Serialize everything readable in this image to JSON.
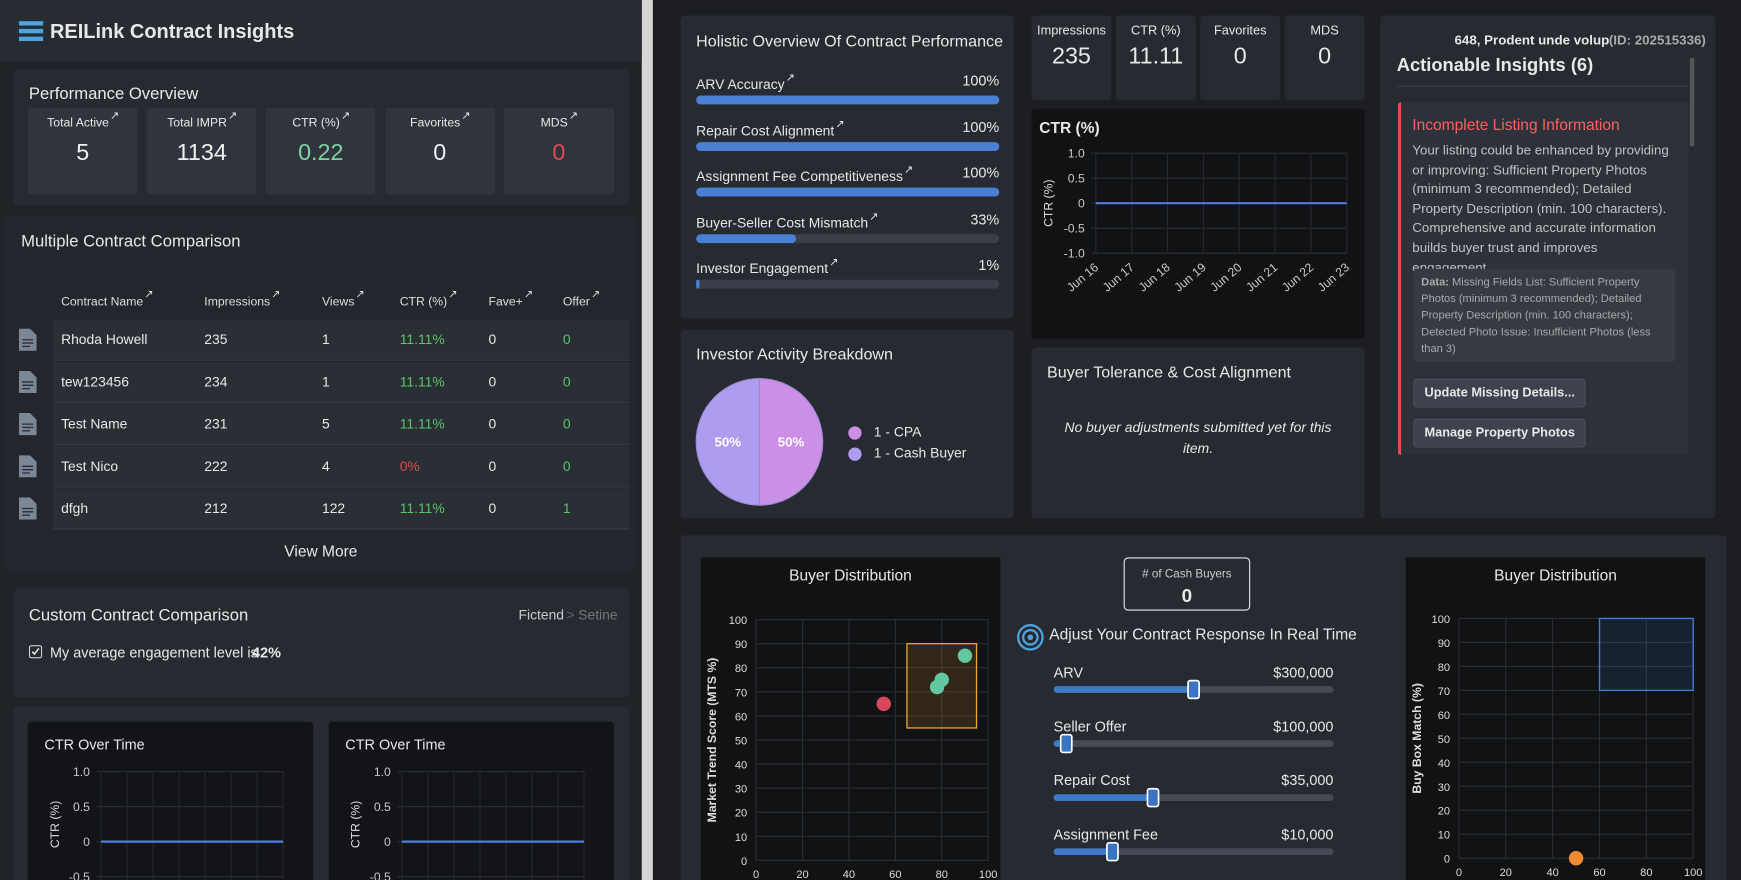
{
  "header": {
    "title": "REILink Contract Insights"
  },
  "performance": {
    "title": "Performance Overview",
    "cards": [
      {
        "label": "Total Active",
        "value": 5
      },
      {
        "label": "Total IMPR",
        "value": 1134
      },
      {
        "label": "CTR (%)",
        "value": 0.22,
        "color": "#7ed4a0"
      },
      {
        "label": "Favorites",
        "value": 0
      },
      {
        "label": "MDS",
        "value": 0,
        "color": "#e5484d"
      }
    ]
  },
  "comparison": {
    "title": "Multiple Contract Comparison",
    "columns": [
      "Contract Name",
      "Impressions",
      "Views",
      "CTR (%)",
      "Fave+",
      "Offer"
    ],
    "rows": [
      [
        "Rhoda Howell",
        235,
        1,
        "11.11%",
        0,
        0
      ],
      [
        "tew123456",
        234,
        1,
        "11.11%",
        0,
        0
      ],
      [
        "Test Name",
        231,
        5,
        "11.11%",
        0,
        0
      ],
      [
        "Test Nico",
        222,
        4,
        "0%",
        0,
        0
      ],
      [
        "dfgh",
        212,
        122,
        "11.11%",
        0,
        1
      ]
    ],
    "view_more": "View More"
  },
  "custom": {
    "title": "Custom Contract Comparison",
    "breadcrumb": [
      "Fictend",
      "Setine"
    ],
    "engagement_text": "My average engagement level is",
    "engagement_value": "42%"
  },
  "ctr_over_time": [
    {
      "type": "line",
      "title": "CTR Over Time",
      "y_label": "CTR (%)",
      "ylim": [
        -1,
        1
      ],
      "yticks": [
        {
          "value": 1,
          "label": "1.0"
        },
        {
          "value": 0.5,
          "label": "0.5"
        },
        0,
        {
          "value": -0.5,
          "label": "-0.5"
        }
      ],
      "values": [
        0,
        0,
        0,
        0,
        0,
        0,
        0,
        0
      ],
      "color": "#4f7fd8"
    },
    {
      "type": "line",
      "title": "CTR Over Time",
      "y_label": "CTR (%)",
      "ylim": [
        -1,
        1
      ],
      "yticks": [
        {
          "value": 1,
          "label": "1.0"
        },
        {
          "value": 0.5,
          "label": "0.5"
        },
        0,
        {
          "value": -0.5,
          "label": "-0.5"
        }
      ],
      "values": [
        0,
        0,
        0,
        0,
        0,
        0,
        0,
        0
      ],
      "color": "#4f7fd8"
    }
  ],
  "holistic": {
    "title": "Holistic Overview Of Contract Performance",
    "xlim": [
      0,
      100
    ],
    "color": "#4a7fd4",
    "metrics": [
      {
        "label": "ARV Accuracy",
        "value": 100,
        "value_label": "100%"
      },
      {
        "label": "Repair Cost Alignment",
        "value": 100,
        "value_label": "100%"
      },
      {
        "label": "Assignment Fee Competitiveness",
        "value": 100,
        "value_label": "100%"
      },
      {
        "label": "Buyer-Seller Cost Mismatch",
        "value": 33,
        "value_label": "33%"
      },
      {
        "label": "Investor Engagement",
        "value": 1,
        "value_label": "1%"
      }
    ]
  },
  "stats": [
    {
      "label": "Impressions",
      "value": 235
    },
    {
      "label": "CTR (%)",
      "value": 11.11
    },
    {
      "label": "Favorites",
      "value": 0
    },
    {
      "label": "MDS",
      "value": 0
    }
  ],
  "ctr_chart": {
    "type": "line",
    "title": "CTR (%)",
    "y_label": "CTR (%)",
    "ylim": [
      -1,
      1
    ],
    "yticks": [
      {
        "value": 1,
        "label": "1.0"
      },
      {
        "value": 0.5,
        "label": "0.5"
      },
      0,
      {
        "value": -0.5,
        "label": "-0.5"
      },
      {
        "value": -1,
        "label": "-1.0"
      }
    ],
    "categories": [
      "Jun 16",
      "Jun 17",
      "Jun 18",
      "Jun 19",
      "Jun 20",
      "Jun 21",
      "Jun 22",
      "Jun 23"
    ],
    "values": [
      0,
      0,
      0,
      0,
      0,
      0,
      0,
      0
    ],
    "color": "#4f7fd8",
    "grid": true
  },
  "insights": {
    "property": "648, Prodent unde volup",
    "property_id": "(ID: 202515336)",
    "title": "Actionable Insights (6)",
    "card": {
      "title": "Incomplete Listing Information",
      "body": "Your listing could be enhanced by providing or improving: Sufficient Property Photos (minimum 3 recommended); Detailed Property Description (min. 100 characters). Comprehensive and accurate information builds buyer trust and improves engagement.",
      "data_label": "Data:",
      "data_text": "Missing Fields List: Sufficient Property Photos (minimum 3 recommended); Detailed Property Description (min. 100 characters); Detected Photo Issue: Insufficient Photos (less than 3)",
      "buttons": [
        "Update Missing Details...",
        "Manage Property Photos"
      ]
    }
  },
  "investor": {
    "type": "pie",
    "title": "Investor Activity Breakdown",
    "slices": [
      {
        "name": "1 - CPA",
        "value": 50,
        "value_label": "50%",
        "color": "#cc8fe6"
      },
      {
        "name": "1 - Cash Buyer",
        "value": 50,
        "value_label": "50%",
        "color": "#ad9cf0"
      }
    ]
  },
  "tolerance": {
    "title": "Buyer Tolerance & Cost Alignment",
    "message": "No buyer adjustments submitted yet for this item."
  },
  "distribution": [
    {
      "type": "scatter",
      "title": "Buyer Distribution",
      "y_label": "Market Trend Score (MTS %)",
      "xlim": [
        0,
        100
      ],
      "ylim": [
        0,
        100
      ],
      "xticks": [
        0,
        20,
        40,
        60,
        80,
        100
      ],
      "yticks": [
        0,
        10,
        20,
        30,
        40,
        50,
        60,
        70,
        80,
        90,
        100
      ],
      "grid": true,
      "box": {
        "x": [
          65,
          95
        ],
        "y": [
          55,
          90
        ],
        "color": "#e8a030"
      },
      "points": {
        "x": [
          55,
          78,
          80,
          90
        ],
        "y": [
          65,
          72,
          75,
          85
        ],
        "colors": [
          "#d9475e",
          "#63c7a2",
          "#63c7a2",
          "#63c7a2"
        ]
      }
    },
    {
      "type": "scatter",
      "title": "Buyer Distribution",
      "y_label": "Buy Box Match (%)",
      "xlim": [
        0,
        100
      ],
      "ylim": [
        0,
        100
      ],
      "xticks": [
        0,
        20,
        40,
        60,
        80,
        100
      ],
      "yticks": [
        0,
        10,
        20,
        30,
        40,
        50,
        60,
        70,
        80,
        90,
        100
      ],
      "grid": true,
      "box": {
        "x": [
          60,
          100
        ],
        "y": [
          70,
          100
        ],
        "color": "#3a7fd8"
      },
      "points": {
        "x": [
          50
        ],
        "y": [
          0
        ],
        "colors": [
          "#f08a30"
        ]
      }
    }
  ],
  "cash_buyers": {
    "label": "# of Cash Buyers",
    "value": 0
  },
  "adjust": {
    "title": "Adjust Your Contract Response In Real Time",
    "sliders": [
      {
        "label": "ARV",
        "value": "$300,000"
      },
      {
        "label": "Seller Offer",
        "value": "$100,000"
      },
      {
        "label": "Repair Cost",
        "value": "$35,000"
      },
      {
        "label": "Assignment Fee",
        "value": "$10,000"
      }
    ]
  }
}
